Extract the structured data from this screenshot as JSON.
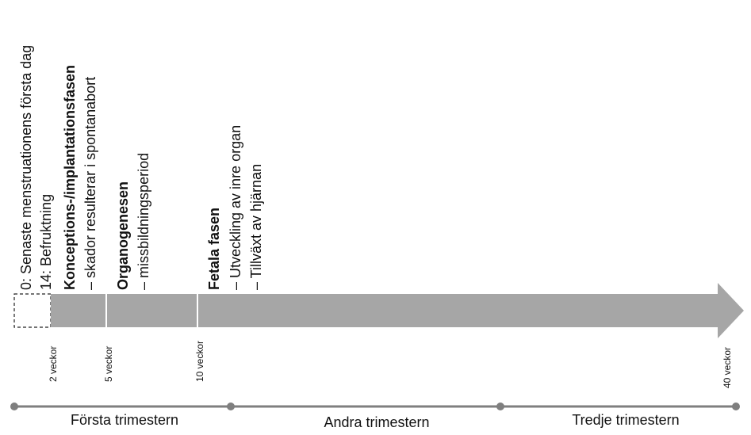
{
  "labels": {
    "start": "0: Senaste menstruationens första dag",
    "fertilization": "14: Befruktning",
    "conception_title": "Konceptions-/implantationsfasen",
    "conception_note": "– skador resulterar i spontanabort",
    "organogenesis_title": "Organogenesen",
    "organogenesis_note": "– missbildningsperiod",
    "fetal_title": "Fetala fasen",
    "fetal_note_1": "– Utveckling av inre organ",
    "fetal_note_2": "– Tillväxt av hjärnan"
  },
  "weeks": [
    "2 veckor",
    "5 veckor",
    "10 veckor",
    "40 veckor"
  ],
  "trimesters": [
    "Första trimestern",
    "Andra trimestern",
    "Tredje trimestern"
  ]
}
